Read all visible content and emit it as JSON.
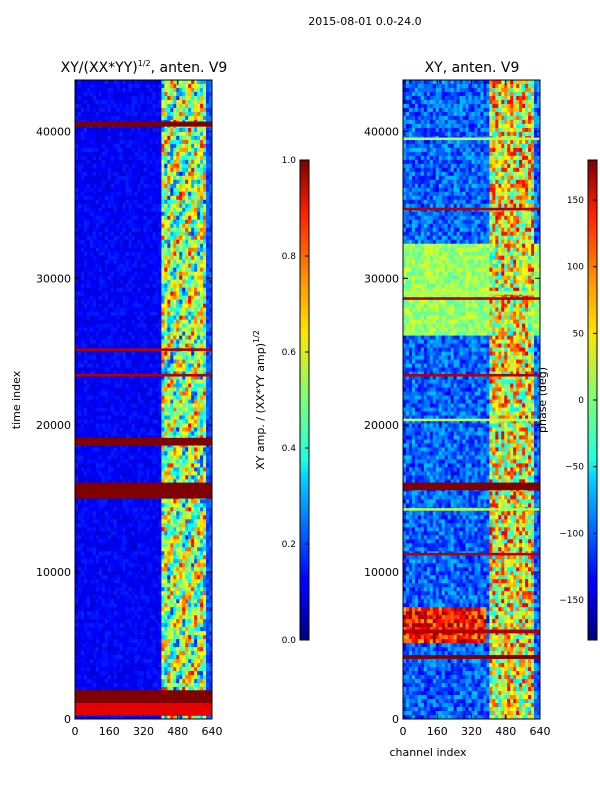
{
  "figure": {
    "suptitle": "2015-08-01 0.0-24.0"
  },
  "chart_data": [
    {
      "type": "heatmap",
      "title_main": "XY/(XX*YY)",
      "title_sup": "1/2",
      "title_rest": ", anten. V9",
      "xlabel": "",
      "ylabel": "time index",
      "xlim": [
        0,
        640
      ],
      "ylim": [
        0,
        43500
      ],
      "xticks": [
        0,
        160,
        320,
        480,
        640
      ],
      "yticks": [
        0,
        10000,
        20000,
        30000,
        40000
      ],
      "colormap": "jet",
      "colorbar": {
        "label": "XY amp. / (XX*YY amp)",
        "label_sup": "1/2",
        "range": [
          0.0,
          1.0
        ],
        "ticks": [
          "0.0",
          "0.2",
          "0.4",
          "0.6",
          "0.8",
          "1.0"
        ]
      }
    },
    {
      "type": "heatmap",
      "title": "XY, anten. V9",
      "xlabel": "channel index",
      "ylabel": "",
      "xlim": [
        0,
        640
      ],
      "ylim": [
        0,
        43500
      ],
      "xticks": [
        0,
        160,
        320,
        480,
        640
      ],
      "yticks": [
        0,
        10000,
        20000,
        30000,
        40000
      ],
      "colormap": "jet",
      "colorbar": {
        "label": "phase (deg)",
        "range": [
          -180,
          180
        ],
        "ticks": [
          "−150",
          "−100",
          "−50",
          "0",
          "50",
          "100",
          "150"
        ]
      }
    }
  ]
}
